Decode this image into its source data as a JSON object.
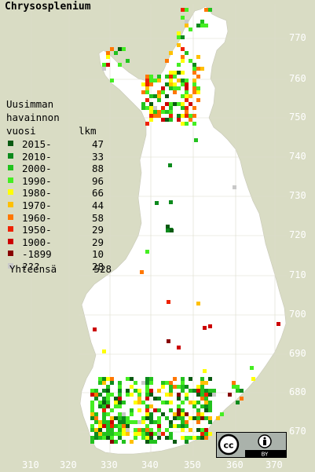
{
  "title": "Chrysosplenium",
  "legend": {
    "header": [
      "Uusimman",
      "havainnon",
      "vuosi"
    ],
    "count_header": "lkm",
    "items": [
      {
        "label": "2015-",
        "count": "47",
        "color": "#0a5a12"
      },
      {
        "label": "2010-",
        "count": "33",
        "color": "#0c8a1c"
      },
      {
        "label": "2000-",
        "count": "88",
        "color": "#22c21e"
      },
      {
        "label": "1990-",
        "count": "96",
        "color": "#44ee22"
      },
      {
        "label": "1980-",
        "count": "66",
        "color": "#ffff00"
      },
      {
        "label": "1970-",
        "count": "44",
        "color": "#ffc000"
      },
      {
        "label": "1960-",
        "count": "58",
        "color": "#ff7700"
      },
      {
        "label": "1950-",
        "count": "29",
        "color": "#ee2200"
      },
      {
        "label": "1900-",
        "count": "29",
        "color": "#cc0000"
      },
      {
        "label": "-1899",
        "count": "10",
        "color": "#880000"
      },
      {
        "label": "???",
        "count": "28",
        "color": "#c8c8c8"
      }
    ],
    "total_label": "Yhteensä",
    "total_count": "528"
  },
  "x_ticks": [
    "310",
    "320",
    "330",
    "340",
    "350",
    "360",
    "370"
  ],
  "y_ticks": [
    "770",
    "760",
    "750",
    "740",
    "730",
    "720",
    "710",
    "700",
    "690",
    "680",
    "670"
  ],
  "license_badge": "cc-by-icon",
  "colors": {
    "background": "#d9dcc4",
    "land": "#ffffff",
    "grid": "#d4d4c4"
  }
}
